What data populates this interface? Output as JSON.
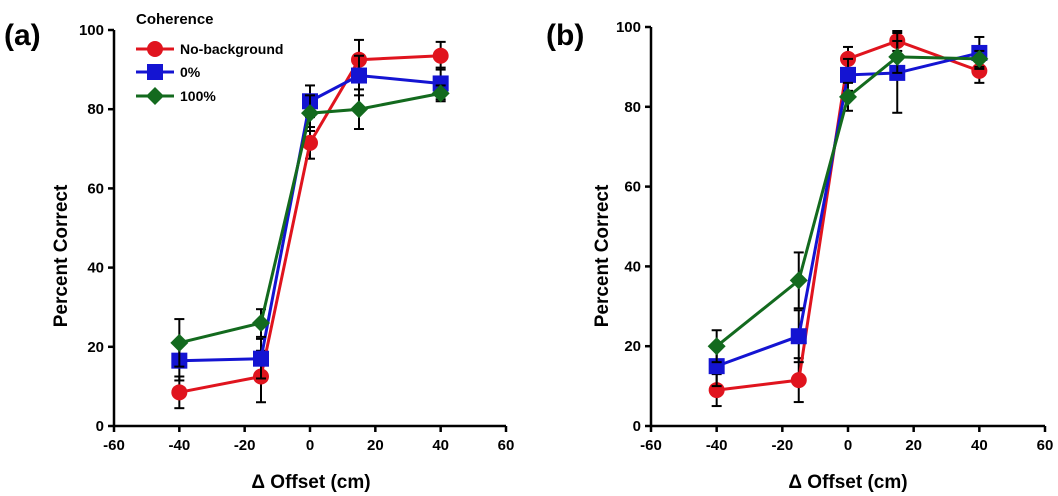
{
  "chart_data": [
    {
      "type": "line",
      "panel_label": "(a)",
      "xlabel": "Δ Offset (cm)",
      "ylabel": "Percent Correct",
      "xlim": [
        -60,
        60
      ],
      "ylim": [
        0,
        100
      ],
      "xticks": [
        "-60",
        "-40",
        "-20",
        "0",
        "20",
        "40",
        "60"
      ],
      "yticks": [
        "0",
        "20",
        "40",
        "60",
        "80",
        "100"
      ],
      "grid": false,
      "legend": {
        "title": "Coherence",
        "position": "top-left"
      },
      "x": [
        -40,
        -15,
        0,
        15,
        40
      ],
      "series": [
        {
          "name": "No-background",
          "color": "#e0141e",
          "marker": "circle",
          "values": [
            8.5,
            12.5,
            71.5,
            92.5,
            93.5
          ],
          "errors": [
            4,
            6.5,
            4,
            5,
            3.5
          ]
        },
        {
          "name": "0%",
          "color": "#1414d2",
          "marker": "square",
          "values": [
            16.5,
            17,
            82,
            88.5,
            86.5
          ],
          "errors": [
            5,
            5,
            4,
            5,
            4
          ]
        },
        {
          "name": "100%",
          "color": "#136a1e",
          "marker": "diamond",
          "values": [
            21,
            26,
            79,
            80,
            84
          ],
          "errors": [
            6,
            3.5,
            4.5,
            5,
            2
          ]
        }
      ]
    },
    {
      "type": "line",
      "panel_label": "(b)",
      "xlabel": "Δ Offset (cm)",
      "ylabel": "Percent Correct",
      "xlim": [
        -60,
        60
      ],
      "ylim": [
        0,
        100
      ],
      "xticks": [
        "-60",
        "-40",
        "-20",
        "0",
        "20",
        "40",
        "60"
      ],
      "yticks": [
        "0",
        "20",
        "40",
        "60",
        "80",
        "100"
      ],
      "grid": false,
      "x": [
        -40,
        -15,
        0,
        15,
        40
      ],
      "series": [
        {
          "name": "No-background",
          "color": "#e0141e",
          "marker": "circle",
          "values": [
            9,
            11.5,
            92,
            96.5,
            89
          ],
          "errors": [
            4,
            5.5,
            3,
            2.5,
            3
          ]
        },
        {
          "name": "0%",
          "color": "#1414d2",
          "marker": "square",
          "values": [
            15,
            22.5,
            88,
            88.5,
            93.5
          ],
          "errors": [
            5,
            6.5,
            4,
            10,
            4
          ]
        },
        {
          "name": "100%",
          "color": "#136a1e",
          "marker": "diamond",
          "values": [
            20,
            36.5,
            82.5,
            92.5,
            92
          ],
          "errors": [
            4,
            7,
            3.5,
            4,
            2
          ]
        }
      ]
    }
  ]
}
